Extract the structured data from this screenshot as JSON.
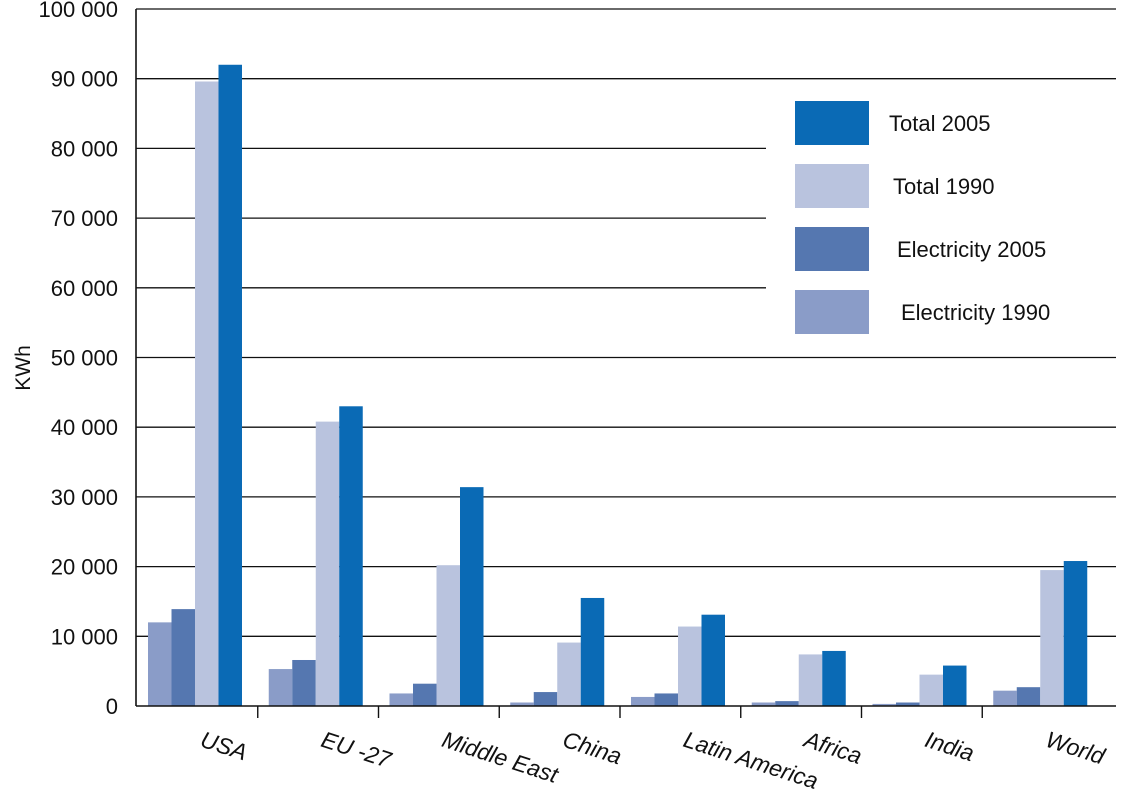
{
  "chart_data": {
    "type": "bar",
    "title": "",
    "xlabel": "",
    "ylabel": "KWh",
    "ylim": [
      0,
      100000
    ],
    "yticks": [
      0,
      10000,
      20000,
      30000,
      40000,
      50000,
      60000,
      70000,
      80000,
      90000,
      100000
    ],
    "ytick_labels": [
      "0",
      "10 000",
      "20 000",
      "30 000",
      "40 000",
      "50 000",
      "60 000",
      "70 000",
      "80 000",
      "90 000",
      "100 000"
    ],
    "grid": true,
    "legend_position": "top-right",
    "categories": [
      "USA",
      "EU -27",
      "Middle East",
      "China",
      "Latin America",
      "Africa",
      "India",
      "World"
    ],
    "series": [
      {
        "name": "Electricity 1990",
        "color": "#8a9cc8",
        "values": [
          12000,
          5300,
          1800,
          500,
          1300,
          500,
          300,
          2200
        ]
      },
      {
        "name": "Electricity 2005",
        "color": "#5577b0",
        "values": [
          13900,
          6600,
          3200,
          2000,
          1800,
          700,
          500,
          2700
        ]
      },
      {
        "name": "Total 1990",
        "color": "#b9c3de",
        "values": [
          89600,
          40800,
          20200,
          9100,
          11400,
          7400,
          4500,
          19500
        ]
      },
      {
        "name": "Total 2005",
        "color": "#0a6ab5",
        "values": [
          92000,
          43000,
          31400,
          15500,
          13100,
          7900,
          5800,
          20800
        ]
      }
    ],
    "legend_order": [
      "Total 2005",
      "Total 1990",
      "Electricity 2005",
      "Electricity 1990"
    ]
  }
}
